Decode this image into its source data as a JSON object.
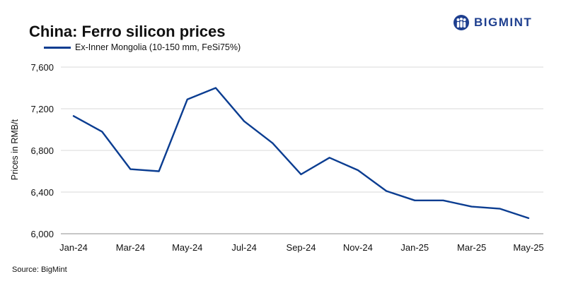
{
  "header": {
    "title": "China: Ferro silicon prices",
    "brand": "BIGMINT"
  },
  "footer": {
    "source": "Source: BigMint"
  },
  "colors": {
    "series": "#0b3d91",
    "grid": "#d9d9d9",
    "brand": "#1e3f8f"
  },
  "chart_data": {
    "type": "line",
    "title": "China: Ferro silicon prices",
    "xlabel": "",
    "ylabel": "Prices in RMB/t",
    "x": [
      "Jan-24",
      "Feb-24",
      "Mar-24",
      "Apr-24",
      "May-24",
      "Jun-24",
      "Jul-24",
      "Aug-24",
      "Sep-24",
      "Oct-24",
      "Nov-24",
      "Dec-24",
      "Jan-25",
      "Feb-25",
      "Mar-25",
      "Apr-25",
      "May-25"
    ],
    "x_tick_labels": [
      "Jan-24",
      "Mar-24",
      "May-24",
      "Jul-24",
      "Sep-24",
      "Nov-24",
      "Jan-25",
      "Mar-25",
      "May-25"
    ],
    "y_tick_labels": [
      "6,000",
      "6,400",
      "6,800",
      "7,200",
      "7,600"
    ],
    "ylim": [
      6000,
      7600
    ],
    "yticks": [
      6000,
      6400,
      6800,
      7200,
      7600
    ],
    "grid": "horizontal",
    "legend_position": "top-left",
    "series": [
      {
        "name": "Ex-Inner Mongolia (10-150 mm, FeSi75%)",
        "values": [
          7130,
          6980,
          6620,
          6600,
          7290,
          7400,
          7080,
          6870,
          6570,
          6730,
          6610,
          6410,
          6320,
          6320,
          6260,
          6240,
          6150
        ]
      }
    ]
  }
}
